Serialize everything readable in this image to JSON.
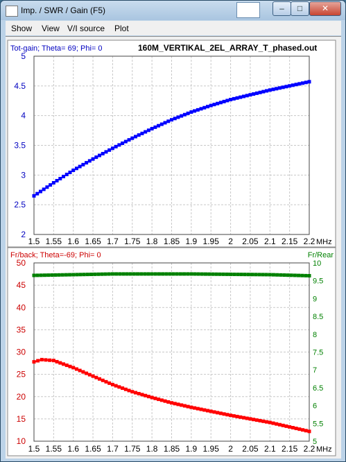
{
  "window": {
    "title": "Imp. / SWR / Gain   (F5)",
    "controls": {
      "minimize": "–",
      "maximize": "□",
      "close": "✕"
    }
  },
  "menu": [
    "Show",
    "View",
    "V/I source",
    "Plot"
  ],
  "chart_data": [
    {
      "type": "line",
      "title": "160M_VERTIKAL_2EL_ARRAY_T_phased.out",
      "subtitle": "Tot-gain; Theta= 69; Phi= 0",
      "xlabel": "MHz",
      "xlim": [
        1.5,
        2.2
      ],
      "ylim": [
        2,
        5
      ],
      "x_ticks": [
        "1.5",
        "1.55",
        "1.6",
        "1.65",
        "1.7",
        "1.75",
        "1.8",
        "1.85",
        "1.9",
        "1.95",
        "2",
        "2.05",
        "2.1",
        "2.15",
        "2.2"
      ],
      "y_ticks": [
        "2",
        "2.5",
        "3",
        "3.5",
        "4",
        "4.5",
        "5"
      ],
      "grid": true,
      "series": [
        {
          "color": "#0000ff",
          "x": [
            1.5,
            1.55,
            1.6,
            1.65,
            1.7,
            1.75,
            1.8,
            1.85,
            1.9,
            1.95,
            2.0,
            2.05,
            2.1,
            2.15,
            2.2
          ],
          "y": [
            2.65,
            2.87,
            3.08,
            3.27,
            3.45,
            3.62,
            3.78,
            3.93,
            4.06,
            4.17,
            4.27,
            4.35,
            4.43,
            4.5,
            4.57
          ]
        }
      ]
    },
    {
      "type": "line",
      "subtitle": "Fr/back; Theta=-69; Phi= 0",
      "right_axis_label": "Fr/Rear",
      "xlabel": "MHz",
      "xlim": [
        1.5,
        2.2
      ],
      "ylim": [
        10,
        50
      ],
      "y2lim": [
        5,
        10
      ],
      "x_ticks": [
        "1.5",
        "1.55",
        "1.6",
        "1.65",
        "1.7",
        "1.75",
        "1.8",
        "1.85",
        "1.9",
        "1.95",
        "2",
        "2.05",
        "2.1",
        "2.15",
        "2.2"
      ],
      "y_ticks": [
        "10",
        "15",
        "20",
        "25",
        "30",
        "35",
        "40",
        "45",
        "50"
      ],
      "y2_ticks": [
        "5",
        "5.5",
        "6",
        "6.5",
        "7",
        "7.5",
        "8",
        "8.5",
        "9",
        "9.5",
        "10"
      ],
      "grid": true,
      "series": [
        {
          "color": "#ff0000",
          "axis": "left",
          "x": [
            1.5,
            1.52,
            1.55,
            1.6,
            1.65,
            1.7,
            1.75,
            1.8,
            1.85,
            1.9,
            1.95,
            2.0,
            2.05,
            2.1,
            2.15,
            2.2
          ],
          "y": [
            27.8,
            28.3,
            28.1,
            26.5,
            24.6,
            22.7,
            21.1,
            19.8,
            18.6,
            17.6,
            16.7,
            15.8,
            15.0,
            14.2,
            13.2,
            12.2
          ]
        },
        {
          "color": "#008000",
          "axis": "right",
          "x": [
            1.5,
            1.6,
            1.7,
            1.8,
            1.9,
            2.0,
            2.1,
            2.2
          ],
          "y": [
            9.65,
            9.67,
            9.69,
            9.69,
            9.69,
            9.68,
            9.67,
            9.64
          ]
        }
      ]
    }
  ]
}
